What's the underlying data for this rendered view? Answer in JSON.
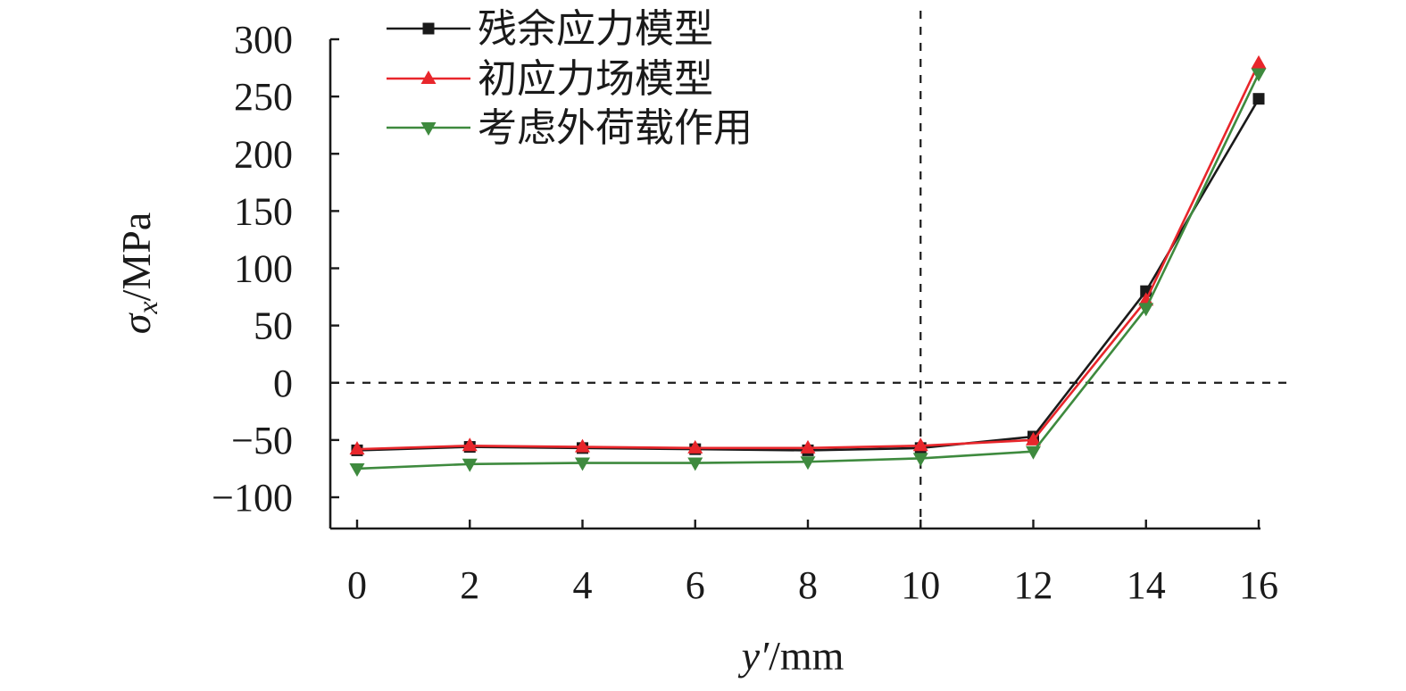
{
  "chart_data": {
    "type": "line",
    "x": [
      0,
      2,
      4,
      6,
      8,
      10,
      12,
      14,
      16
    ],
    "xlabel_var": "y′",
    "xlabel_unit": "/mm",
    "ylabel_var": "σ",
    "ylabel_sub": "x",
    "ylabel_unit": "/MPa",
    "xlim": [
      0,
      16
    ],
    "ylim": [
      -125,
      300
    ],
    "xticks": [
      0,
      2,
      4,
      6,
      8,
      10,
      12,
      14,
      16
    ],
    "yticks": [
      -100,
      -50,
      0,
      50,
      100,
      150,
      200,
      250,
      300
    ],
    "ytick_labels": [
      "−100",
      "−50",
      "0",
      "50",
      "100",
      "150",
      "200",
      "250",
      "300"
    ],
    "reference_lines": {
      "x": 10,
      "y": 0,
      "style": "dashed"
    },
    "grid": false,
    "legend_position": "top-left",
    "series": [
      {
        "name": "残余应力模型",
        "color": "#1a1a1a",
        "marker": "square",
        "values": [
          -59,
          -56,
          -57,
          -58,
          -59,
          -57,
          -47,
          80,
          248
        ]
      },
      {
        "name": "初应力场模型",
        "color": "#e8262b",
        "marker": "triangle-up",
        "values": [
          -58,
          -55,
          -56,
          -57,
          -57,
          -55,
          -50,
          72,
          279
        ]
      },
      {
        "name": "考虑外荷载作用",
        "color": "#3e8a3e",
        "marker": "triangle-down",
        "values": [
          -75,
          -71,
          -70,
          -70,
          -69,
          -66,
          -60,
          65,
          270
        ]
      }
    ]
  }
}
